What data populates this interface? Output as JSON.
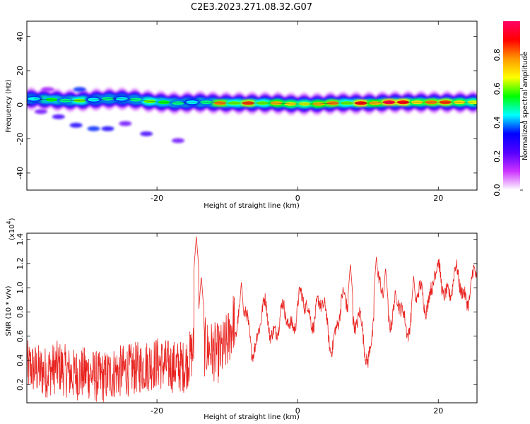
{
  "title": "C2E3.2023.271.08.32.G07",
  "chart_data": [
    {
      "type": "heatmap",
      "xlabel": "Height of straight line (km)",
      "ylabel": "Frequency (Hz)",
      "xlim": [
        -38.5,
        25.5
      ],
      "ylim": [
        -50,
        49
      ],
      "xticks": [
        -20,
        0,
        20
      ],
      "xtick_labels": [
        "-20",
        "0",
        "20"
      ],
      "yticks": [
        -40,
        -20,
        0,
        20,
        40
      ],
      "ytick_labels": [
        "-40",
        "-20",
        "0",
        "20",
        "40"
      ],
      "grid": false,
      "colorbar": {
        "label": "Normalized spectral amplitude",
        "range": [
          0,
          1
        ],
        "ticks": [
          0.0,
          0.2,
          0.4,
          0.6,
          0.8
        ],
        "tick_labels": [
          "0.0",
          "0.2",
          "0.4",
          "0.6",
          "0.8"
        ],
        "colors": [
          "#ffffff",
          "#cc33ff",
          "#5500ff",
          "#0000ff",
          "#00ffff",
          "#00ff00",
          "#ffff00",
          "#ff9900",
          "#ff0000",
          "#ff0066"
        ]
      },
      "ridge": {
        "x": [
          -37.5,
          -35,
          -33,
          -31,
          -29,
          -27,
          -25,
          -23,
          -21,
          -19,
          -17,
          -15,
          -13,
          -11,
          -9,
          -7,
          -5,
          -3,
          -1,
          1,
          3,
          5,
          7,
          9,
          11,
          13,
          15,
          17,
          19,
          21,
          23,
          25
        ],
        "y": [
          3.5,
          3.0,
          2.5,
          2.5,
          3.0,
          3.5,
          3.5,
          3.0,
          2.0,
          1.5,
          1.0,
          1.5,
          1.5,
          1.0,
          1.0,
          1.0,
          1.0,
          1.0,
          0.5,
          0.5,
          0.5,
          1.0,
          1.0,
          1.0,
          1.0,
          1.5,
          1.5,
          1.5,
          1.5,
          1.5,
          1.5,
          1.5
        ],
        "amplitude": [
          0.45,
          0.55,
          0.5,
          0.6,
          0.45,
          0.5,
          0.45,
          0.5,
          0.6,
          0.55,
          0.5,
          0.45,
          0.5,
          0.8,
          0.6,
          0.85,
          0.6,
          0.75,
          0.7,
          0.65,
          0.75,
          0.8,
          0.6,
          0.9,
          0.75,
          0.95,
          0.9,
          0.7,
          0.8,
          0.85,
          0.7,
          0.65
        ]
      },
      "scatter_blobs": {
        "x": [
          -36.5,
          -34,
          -31.5,
          -29,
          -27,
          -24.5,
          -21.5,
          -17,
          -35.5,
          -31
        ],
        "y": [
          -4,
          -7,
          -12,
          -14,
          -14,
          -11,
          -17,
          -21,
          9,
          9
        ],
        "amplitude": [
          0.2,
          0.25,
          0.3,
          0.35,
          0.3,
          0.2,
          0.25,
          0.2,
          0.15,
          0.35
        ]
      }
    },
    {
      "type": "line",
      "xlabel": "Height of straight line (km)",
      "ylabel": "SNR (10 * v/v)",
      "y_multiplier": "(x10",
      "y_multiplier_exponent": "4",
      "xlim": [
        -38.5,
        25.5
      ],
      "ylim": [
        0.05,
        1.45
      ],
      "xticks": [
        -20,
        0,
        20
      ],
      "xtick_labels": [
        "-20",
        "0",
        "20"
      ],
      "yticks": [
        0.2,
        0.4,
        0.6,
        0.8,
        1.0,
        1.2,
        1.4
      ],
      "ytick_labels": [
        "0.2",
        "0.4",
        "0.6",
        "0.8",
        "1.0",
        "1.2",
        "1.4"
      ],
      "grid": false,
      "color": "#e8231f",
      "envelope": {
        "x": [
          -38.5,
          -36,
          -34,
          -32,
          -30,
          -28,
          -26,
          -24,
          -22,
          -20,
          -18,
          -16,
          -14.3,
          -13,
          -11,
          -10,
          -9,
          -8,
          -7,
          -6,
          -5,
          -4,
          -3,
          -2,
          -1,
          0,
          1,
          2,
          3,
          4,
          5,
          6,
          7,
          8,
          9,
          10,
          11,
          12,
          13,
          14,
          15,
          16,
          17,
          18,
          19,
          20,
          21,
          22,
          23,
          24,
          25.5
        ],
        "y": [
          0.35,
          0.3,
          0.35,
          0.28,
          0.3,
          0.25,
          0.3,
          0.32,
          0.35,
          0.38,
          0.35,
          0.35,
          0.55,
          0.5,
          0.45,
          0.55,
          0.75,
          0.8,
          0.6,
          0.6,
          0.75,
          0.7,
          0.72,
          0.7,
          0.75,
          0.85,
          0.8,
          0.85,
          0.8,
          0.75,
          0.6,
          0.7,
          0.95,
          0.75,
          0.6,
          0.45,
          0.9,
          0.95,
          0.85,
          0.8,
          0.75,
          0.8,
          0.85,
          0.95,
          1.0,
          1.05,
          1.05,
          1.0,
          1.02,
          1.0,
          1.0
        ]
      },
      "spikes": {
        "x": [
          -14.4,
          -13.7,
          -8,
          7.5,
          11.2,
          12.5,
          16.5,
          19.5
        ],
        "y": [
          1.43,
          1.1,
          1.05,
          1.2,
          1.26,
          1.17,
          1.1,
          1.15
        ]
      }
    }
  ]
}
